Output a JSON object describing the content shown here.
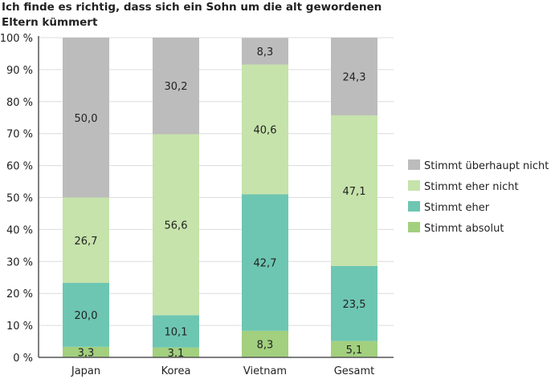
{
  "chart_data": {
    "type": "bar",
    "stacked": true,
    "title": "Ich finde es richtig, dass sich ein Sohn um die alt gewordenen Eltern kümmert",
    "xlabel": "",
    "ylabel": "",
    "ylim": [
      0,
      100
    ],
    "yticks": [
      "0 %",
      "10 %",
      "20 %",
      "30 %",
      "40 %",
      "50 %",
      "60 %",
      "70 %",
      "80 %",
      "90 %",
      "100 %"
    ],
    "categories": [
      "Japan",
      "Korea",
      "Vietnam",
      "Gesamt"
    ],
    "series": [
      {
        "name": "Stimmt absolut",
        "color": "#a2d07e",
        "values": [
          3.3,
          3.1,
          8.3,
          5.1
        ],
        "labels": [
          "3,3",
          "3,1",
          "8,3",
          "5,1"
        ]
      },
      {
        "name": "Stimmt eher",
        "color": "#6dc6b2",
        "values": [
          20.0,
          10.1,
          42.7,
          23.5
        ],
        "labels": [
          "20,0",
          "10,1",
          "42,7",
          "23,5"
        ]
      },
      {
        "name": "Stimmt eher nicht",
        "color": "#c6e3ab",
        "values": [
          26.7,
          56.6,
          40.6,
          47.1
        ],
        "labels": [
          "26,7",
          "56,6",
          "40,6",
          "47,1"
        ]
      },
      {
        "name": "Stimmt überhaupt nicht",
        "color": "#bcbcbc",
        "values": [
          50.0,
          30.2,
          8.3,
          24.3
        ],
        "labels": [
          "50,0",
          "30,2",
          "8,3",
          "24,3"
        ]
      }
    ],
    "legend_order": [
      3,
      2,
      1,
      0
    ],
    "legend_position": "right",
    "grid": true
  }
}
